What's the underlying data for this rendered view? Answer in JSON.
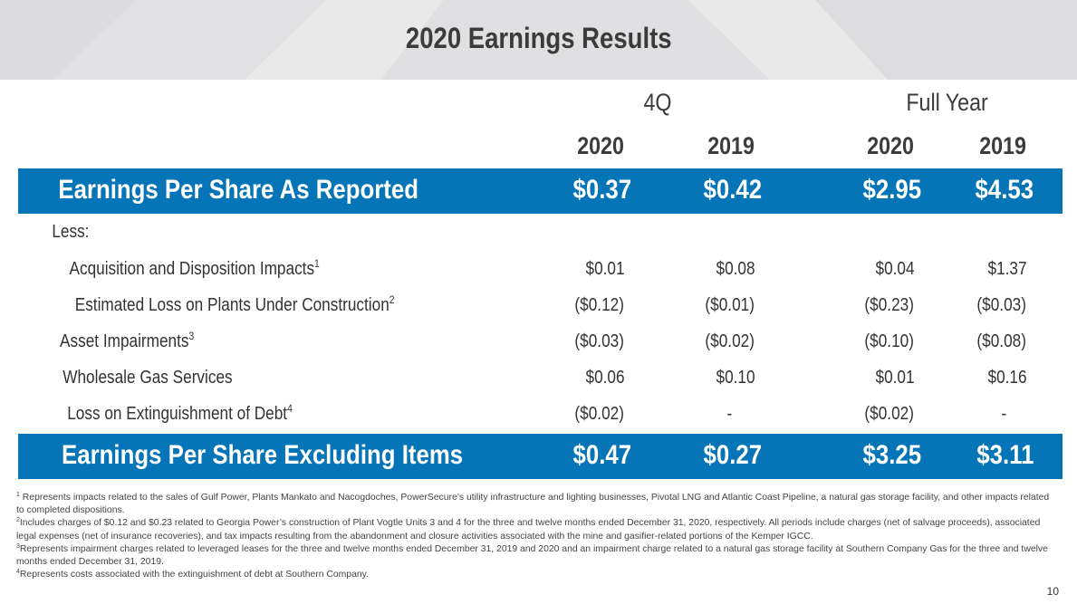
{
  "slide": {
    "title": "2020 Earnings Results",
    "page_number": "10"
  },
  "columns": {
    "group_quarter": "4Q",
    "group_full_year": "Full Year",
    "years": [
      "2020",
      "2019",
      "2020",
      "2019"
    ]
  },
  "eps_reported": {
    "label": "Earnings Per Share As Reported",
    "values": [
      "$0.37",
      "$0.42",
      "$2.95",
      "$4.53"
    ]
  },
  "less_label": "Less:",
  "adjustments": [
    {
      "label": "Acquisition and Disposition Impacts",
      "note": "1",
      "values": [
        "$0.01",
        "$0.08",
        "$0.04",
        "$1.37"
      ]
    },
    {
      "label": "Estimated Loss on Plants Under Construction",
      "note": "2",
      "values": [
        "($0.12)",
        "($0.01)",
        "($0.23)",
        "($0.03)"
      ]
    },
    {
      "label": "Asset Impairments",
      "note": "3",
      "values": [
        "($0.03)",
        "($0.02)",
        "($0.10)",
        "($0.08)"
      ]
    },
    {
      "label": "Wholesale Gas Services",
      "note": "",
      "values": [
        "$0.06",
        "$0.10",
        "$0.01",
        "$0.16"
      ]
    },
    {
      "label": "Loss on Extinguishment of Debt",
      "note": "4",
      "values": [
        "($0.02)",
        "-",
        "($0.02)",
        "-"
      ]
    }
  ],
  "eps_excluding": {
    "label": "Earnings Per Share Excluding Items",
    "values": [
      "$0.47",
      "$0.27",
      "$3.25",
      "$3.11"
    ]
  },
  "footnotes": [
    {
      "mark": "1",
      "text": "Represents impacts related to the sales of Gulf Power, Plants Mankato and Nacogdoches, PowerSecure’s utility infrastructure and lighting businesses, Pivotal LNG and Atlantic Coast Pipeline, a natural gas storage facility, and other impacts related to completed dispositions."
    },
    {
      "mark": "2",
      "text": "Includes charges of $0.12 and $0.23 related to Georgia Power’s construction of Plant Vogtle Units 3 and 4 for the three and twelve months ended December 31, 2020, respectively.  All periods include charges (net of salvage proceeds), associated legal expenses (net of insurance recoveries), and tax impacts resulting from the abandonment and closure activities associated with the mine and gasifier-related portions of the Kemper IGCC."
    },
    {
      "mark": "3",
      "text": "Represents impairment charges related to leveraged leases for the three and twelve months ended December 31, 2019 and 2020 and an impairment charge related to a natural gas storage facility at Southern Company Gas for the three and twelve months ended December 31, 2019."
    },
    {
      "mark": "4",
      "text": "Represents costs associated with the extinguishment of debt at Southern Company."
    }
  ],
  "colors": {
    "band": "#0575b8",
    "banner": "#e9e9ea"
  }
}
